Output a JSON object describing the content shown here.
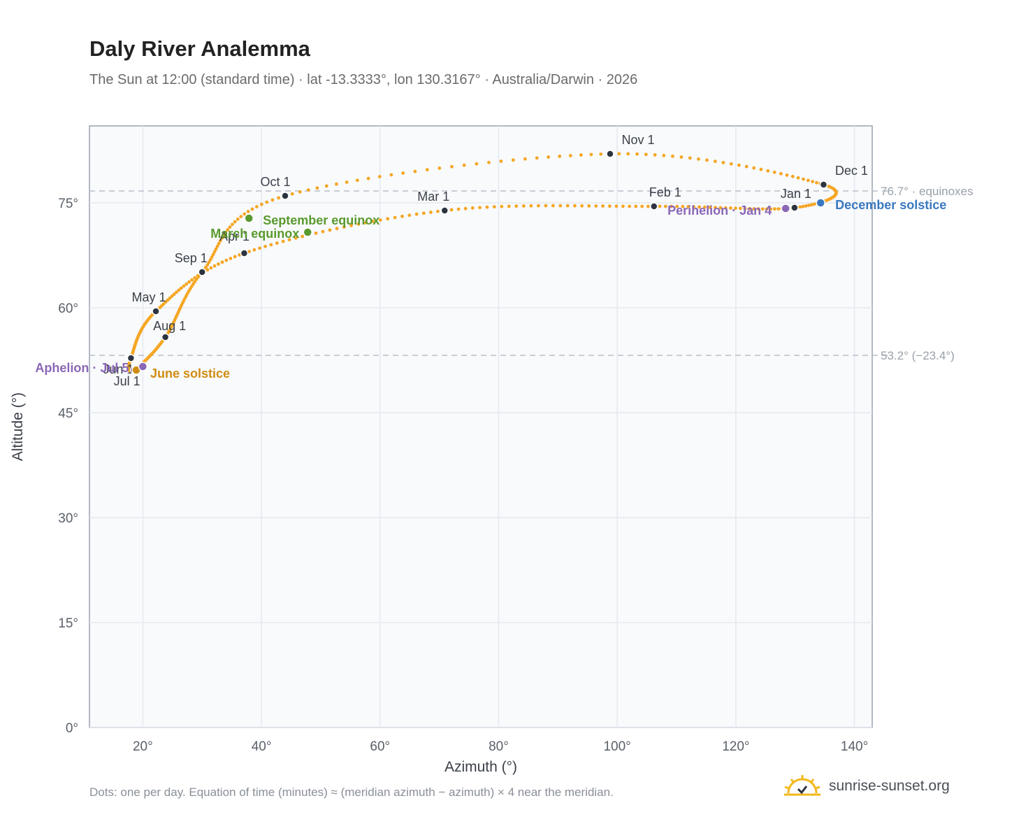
{
  "title": "Daly River Analemma",
  "subtitle": "The Sun at 12:00 (standard time) · lat -13.3333°, lon 130.3167° · Australia/Darwin · 2026",
  "footnote": "Dots: one per day. Equation of time (minutes) ≈ (meridian azimuth − azimuth) × 4 near the meridian.",
  "brand": {
    "name": "sunrise-sunset.org",
    "icon": "sun-logo-icon"
  },
  "colors": {
    "path": "#f5a623",
    "month_dot": "#2d3440",
    "equinox": "#5a9a2e",
    "june_solstice": "#d08c12",
    "december_solstice": "#3a78c0",
    "apsis": "#8b67b7",
    "grid": "#e5e9ef",
    "reference_line": "#b8c0ca",
    "plot_bg": "#f8fafc"
  },
  "chart_data": {
    "type": "scatter",
    "title": "Daly River Analemma",
    "xlabel": "Azimuth (°)",
    "ylabel": "Altitude (°)",
    "xlim": [
      11,
      143
    ],
    "ylim": [
      0,
      86
    ],
    "x_ticks": [
      "20°",
      "40°",
      "60°",
      "80°",
      "100°",
      "120°",
      "140°"
    ],
    "x_tick_values": [
      20,
      40,
      60,
      80,
      100,
      120,
      140
    ],
    "y_ticks": [
      "0°",
      "15°",
      "30°",
      "45°",
      "60°",
      "75°"
    ],
    "y_tick_values": [
      0,
      15,
      30,
      45,
      60,
      75
    ],
    "grid": true,
    "reference_lines": [
      {
        "y": 76.7,
        "label": "76.7° · equinoxes"
      },
      {
        "y": 53.2,
        "label": "53.2° (−23.4°)"
      }
    ],
    "month_markers": [
      {
        "label": "Jan 1",
        "x": 129.9,
        "y": 74.3
      },
      {
        "label": "Feb 1",
        "x": 106.2,
        "y": 74.5
      },
      {
        "label": "Mar 1",
        "x": 70.9,
        "y": 73.9
      },
      {
        "label": "Apr 1",
        "x": 37.1,
        "y": 67.8
      },
      {
        "label": "May 1",
        "x": 22.2,
        "y": 59.5
      },
      {
        "label": "Jun 1",
        "x": 18.0,
        "y": 52.8
      },
      {
        "label": "Jul 1",
        "x": 18.5,
        "y": 51.1
      },
      {
        "label": "Aug 1",
        "x": 23.8,
        "y": 55.8
      },
      {
        "label": "Sep 1",
        "x": 30.0,
        "y": 65.1
      },
      {
        "label": "Oct 1",
        "x": 44.0,
        "y": 76.0
      },
      {
        "label": "Nov 1",
        "x": 98.8,
        "y": 82.0
      },
      {
        "label": "Dec 1",
        "x": 134.8,
        "y": 77.6
      }
    ],
    "events": [
      {
        "label": "March equinox",
        "x": 47.8,
        "y": 70.8,
        "kind": "equinox"
      },
      {
        "label": "September equinox",
        "x": 37.9,
        "y": 72.8,
        "kind": "equinox"
      },
      {
        "label": "June solstice",
        "x": 18.9,
        "y": 51.1,
        "kind": "june_solstice"
      },
      {
        "label": "December solstice",
        "x": 134.3,
        "y": 75.0,
        "kind": "december_solstice"
      },
      {
        "label": "Perihelion · Jan 4",
        "x": 128.4,
        "y": 74.2,
        "kind": "apsis"
      },
      {
        "label": "Aphelion · Jul 5",
        "x": 20.0,
        "y": 51.6,
        "kind": "apsis"
      }
    ]
  }
}
